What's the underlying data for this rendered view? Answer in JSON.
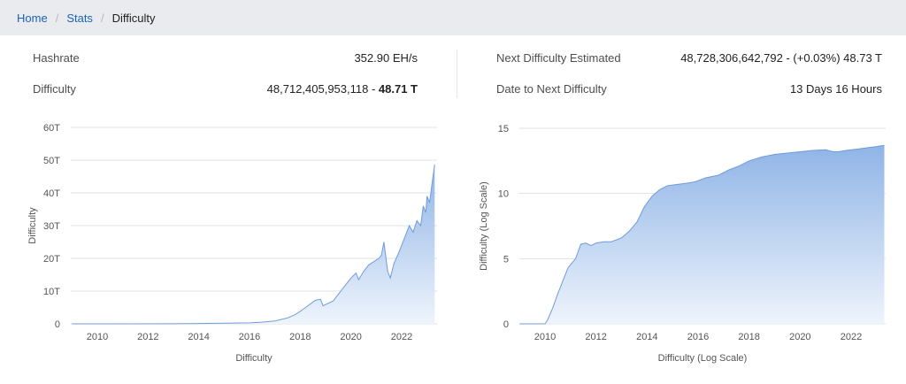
{
  "breadcrumb": {
    "items": [
      {
        "label": "Home",
        "link": true
      },
      {
        "label": "Stats",
        "link": true
      },
      {
        "label": "Difficulty",
        "link": false
      }
    ]
  },
  "stats": {
    "hashrate": {
      "label": "Hashrate",
      "value": "352.90 EH/s"
    },
    "difficulty": {
      "label": "Difficulty",
      "value": "48,712,405,953,118",
      "separator": " - ",
      "short": "48.71 T"
    },
    "next_difficulty": {
      "label": "Next Difficulty Estimated",
      "value": "48,728,306,642,792 - (+0.03%) 48.73 T"
    },
    "next_date": {
      "label": "Date to Next Difficulty",
      "value": "13 Days 16 Hours"
    }
  },
  "colors": {
    "area_top": "#8fb4e6",
    "area_bottom": "#eef4fc",
    "line": "#6f9bdc",
    "grid": "#dfe1e5",
    "link": "#1d63b7"
  },
  "chart_data": [
    {
      "type": "area",
      "xlabel": "Difficulty",
      "ylabel": "Difficulty",
      "ylim": [
        0,
        60
      ],
      "y_ticks": [
        0,
        10,
        20,
        30,
        40,
        50,
        60
      ],
      "y_tick_labels": [
        "0",
        "10T",
        "20T",
        "30T",
        "40T",
        "50T",
        "60T"
      ],
      "xlim": [
        2009.0,
        2023.3
      ],
      "x_ticks": [
        2010,
        2012,
        2014,
        2016,
        2018,
        2020,
        2022
      ],
      "x_tick_labels": [
        "2010",
        "2012",
        "2014",
        "2016",
        "2018",
        "2020",
        "2022"
      ],
      "grid": true,
      "series": [
        {
          "x": [
            2009.0,
            2013.0,
            2014.0,
            2015.0,
            2016.0,
            2016.5,
            2017.0,
            2017.5,
            2017.8,
            2018.0,
            2018.3,
            2018.6,
            2018.8,
            2018.9,
            2019.0,
            2019.3,
            2019.5,
            2019.6,
            2019.8,
            2019.9,
            2020.0,
            2020.2,
            2020.3,
            2020.5,
            2020.7,
            2020.9,
            2021.1,
            2021.2,
            2021.3,
            2021.45,
            2021.55,
            2021.7,
            2021.9,
            2022.0,
            2022.2,
            2022.3,
            2022.45,
            2022.6,
            2022.75,
            2022.85,
            2022.95,
            2023.0,
            2023.1,
            2023.2,
            2023.3
          ],
          "y": [
            0,
            0.02,
            0.1,
            0.2,
            0.3,
            0.5,
            0.9,
            1.8,
            2.8,
            3.8,
            5.5,
            7.2,
            7.5,
            5.5,
            5.9,
            7.0,
            9.0,
            10.0,
            12.0,
            13.0,
            14.0,
            15.5,
            13.5,
            16.0,
            18.0,
            19.0,
            20.0,
            21.0,
            25.0,
            16.0,
            14.0,
            18.5,
            22.0,
            24.0,
            28.0,
            30.0,
            28.0,
            31.5,
            30.0,
            36.0,
            34.0,
            39.0,
            37.0,
            43.0,
            48.7
          ]
        }
      ]
    },
    {
      "type": "area",
      "xlabel": "Difficulty (Log Scale)",
      "ylabel": "Difficulty (Log Scale)",
      "ylim": [
        0,
        15
      ],
      "y_ticks": [
        0,
        5,
        10,
        15
      ],
      "y_tick_labels": [
        "0",
        "5",
        "10",
        "15"
      ],
      "xlim": [
        2009.0,
        2023.3
      ],
      "x_ticks": [
        2010,
        2012,
        2014,
        2016,
        2018,
        2020,
        2022
      ],
      "x_tick_labels": [
        "2010",
        "2012",
        "2014",
        "2016",
        "2018",
        "2020",
        "2022"
      ],
      "grid": true,
      "series": [
        {
          "x": [
            2009.0,
            2010.0,
            2010.1,
            2010.3,
            2010.5,
            2010.7,
            2010.9,
            2011.2,
            2011.4,
            2011.6,
            2011.8,
            2012.0,
            2012.3,
            2012.6,
            2013.0,
            2013.3,
            2013.6,
            2013.9,
            2014.2,
            2014.5,
            2014.8,
            2015.2,
            2015.6,
            2015.9,
            2016.3,
            2016.8,
            2017.2,
            2017.6,
            2018.0,
            2018.5,
            2019.0,
            2019.5,
            2020.0,
            2020.5,
            2021.0,
            2021.3,
            2021.5,
            2021.8,
            2022.2,
            2022.6,
            2023.0,
            2023.3
          ],
          "y": [
            0,
            0,
            0.3,
            1.2,
            2.3,
            3.3,
            4.3,
            5.0,
            6.1,
            6.2,
            6.0,
            6.2,
            6.3,
            6.3,
            6.6,
            7.1,
            7.8,
            9.0,
            9.8,
            10.3,
            10.6,
            10.7,
            10.8,
            10.9,
            11.2,
            11.4,
            11.8,
            12.1,
            12.5,
            12.8,
            13.0,
            13.1,
            13.2,
            13.3,
            13.35,
            13.2,
            13.2,
            13.3,
            13.4,
            13.5,
            13.6,
            13.7
          ]
        }
      ]
    }
  ]
}
